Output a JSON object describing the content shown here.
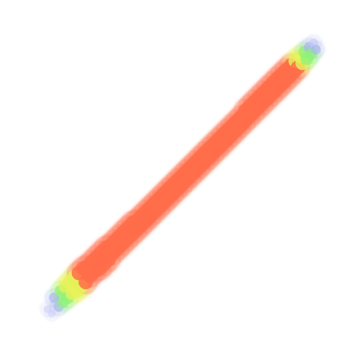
{
  "chart_data": {
    "type": "heatmap",
    "title": "",
    "xlabel": "",
    "ylabel": "",
    "xlim": [
      -3.5,
      3.5
    ],
    "ylim": [
      -3.5,
      3.5
    ],
    "axes_visible": false,
    "grid": false,
    "legend": "none",
    "description_of_encoding": "point density",
    "colors": {
      "low": "#c9cdf7",
      "low_mid": "#a9b4f0",
      "mid": "#8ef27a",
      "mid_high": "#e6f25a",
      "high": "#ff6d4a"
    },
    "trend": {
      "slope": 1.0,
      "intercept": 0.0,
      "x_range": [
        -3.0,
        3.0
      ],
      "spread_sd": 0.22
    },
    "points": [
      [
        -2.95,
        -2.85
      ],
      [
        -2.85,
        -2.95
      ],
      [
        -2.8,
        -2.6
      ],
      [
        -2.7,
        -2.8
      ],
      [
        -2.65,
        -2.45
      ],
      [
        -2.6,
        -2.7
      ],
      [
        -2.55,
        -2.35
      ],
      [
        -2.5,
        -2.6
      ],
      [
        -2.45,
        -2.25
      ],
      [
        -2.4,
        -2.5
      ],
      [
        -2.35,
        -2.15
      ],
      [
        -2.3,
        -2.45
      ],
      [
        -2.25,
        -2.05
      ],
      [
        -2.2,
        -2.35
      ],
      [
        -2.15,
        -1.95
      ],
      [
        -2.1,
        -2.25
      ],
      [
        -2.05,
        -1.9
      ],
      [
        -2.0,
        -2.1
      ],
      [
        -1.95,
        -1.8
      ],
      [
        -1.9,
        -2.0
      ],
      [
        -1.85,
        -1.7
      ],
      [
        -1.8,
        -1.95
      ],
      [
        -1.75,
        -1.6
      ],
      [
        -1.7,
        -1.85
      ],
      [
        -1.65,
        -1.5
      ],
      [
        -1.6,
        -1.75
      ],
      [
        -1.55,
        -1.45
      ],
      [
        -1.5,
        -1.6
      ],
      [
        -1.45,
        -1.35
      ],
      [
        -1.4,
        -1.5
      ],
      [
        -1.35,
        -1.25
      ],
      [
        -1.3,
        -1.4
      ],
      [
        -1.25,
        -1.15
      ],
      [
        -1.2,
        -1.3
      ],
      [
        -1.15,
        -1.05
      ],
      [
        -1.1,
        -1.2
      ],
      [
        -1.05,
        -0.95
      ],
      [
        -1.0,
        -1.1
      ],
      [
        -0.95,
        -0.9
      ],
      [
        -0.9,
        -1.0
      ],
      [
        -0.85,
        -0.8
      ],
      [
        -0.8,
        -0.9
      ],
      [
        -0.75,
        -0.7
      ],
      [
        -0.7,
        -0.8
      ],
      [
        -0.65,
        -0.6
      ],
      [
        -0.6,
        -0.7
      ],
      [
        -0.55,
        -0.5
      ],
      [
        -0.5,
        -0.6
      ],
      [
        -0.45,
        -0.4
      ],
      [
        -0.4,
        -0.5
      ],
      [
        -0.35,
        -0.3
      ],
      [
        -0.3,
        -0.4
      ],
      [
        -0.25,
        -0.2
      ],
      [
        -0.2,
        -0.3
      ],
      [
        -0.15,
        -0.1
      ],
      [
        -0.1,
        -0.2
      ],
      [
        -0.05,
        0.0
      ],
      [
        0.0,
        -0.1
      ],
      [
        0.05,
        0.1
      ],
      [
        0.1,
        0.0
      ],
      [
        0.15,
        0.2
      ],
      [
        0.2,
        0.1
      ],
      [
        0.25,
        0.3
      ],
      [
        0.3,
        0.2
      ],
      [
        0.35,
        0.4
      ],
      [
        0.4,
        0.3
      ],
      [
        0.45,
        0.5
      ],
      [
        0.5,
        0.4
      ],
      [
        0.55,
        0.6
      ],
      [
        0.6,
        0.5
      ],
      [
        0.65,
        0.7
      ],
      [
        0.7,
        0.6
      ],
      [
        0.75,
        0.8
      ],
      [
        0.8,
        0.7
      ],
      [
        0.85,
        0.9
      ],
      [
        0.9,
        0.8
      ],
      [
        0.95,
        1.0
      ],
      [
        1.0,
        0.9
      ],
      [
        1.05,
        1.1
      ],
      [
        1.1,
        1.0
      ],
      [
        1.15,
        1.2
      ],
      [
        1.2,
        1.1
      ],
      [
        1.25,
        1.3
      ],
      [
        1.3,
        1.2
      ],
      [
        1.35,
        1.4
      ],
      [
        1.4,
        1.3
      ],
      [
        1.45,
        1.55
      ],
      [
        1.5,
        1.4
      ],
      [
        1.55,
        1.65
      ],
      [
        1.6,
        1.5
      ],
      [
        1.65,
        1.75
      ],
      [
        1.7,
        1.6
      ],
      [
        1.75,
        1.85
      ],
      [
        1.8,
        1.7
      ],
      [
        1.85,
        1.95
      ],
      [
        1.9,
        1.8
      ],
      [
        1.95,
        2.05
      ],
      [
        2.0,
        1.9
      ],
      [
        2.05,
        2.15
      ],
      [
        2.1,
        2.0
      ],
      [
        2.15,
        2.25
      ],
      [
        2.2,
        2.1
      ],
      [
        2.25,
        2.35
      ],
      [
        2.3,
        2.2
      ],
      [
        2.35,
        2.45
      ],
      [
        2.4,
        2.3
      ],
      [
        2.45,
        2.55
      ],
      [
        2.5,
        2.4
      ],
      [
        2.55,
        2.65
      ],
      [
        2.6,
        2.5
      ],
      [
        2.65,
        2.75
      ],
      [
        2.7,
        2.6
      ],
      [
        2.75,
        2.85
      ],
      [
        2.8,
        2.7
      ],
      [
        2.85,
        2.95
      ],
      [
        2.9,
        2.8
      ],
      [
        2.95,
        3.05
      ],
      [
        3.0,
        2.9
      ]
    ]
  }
}
